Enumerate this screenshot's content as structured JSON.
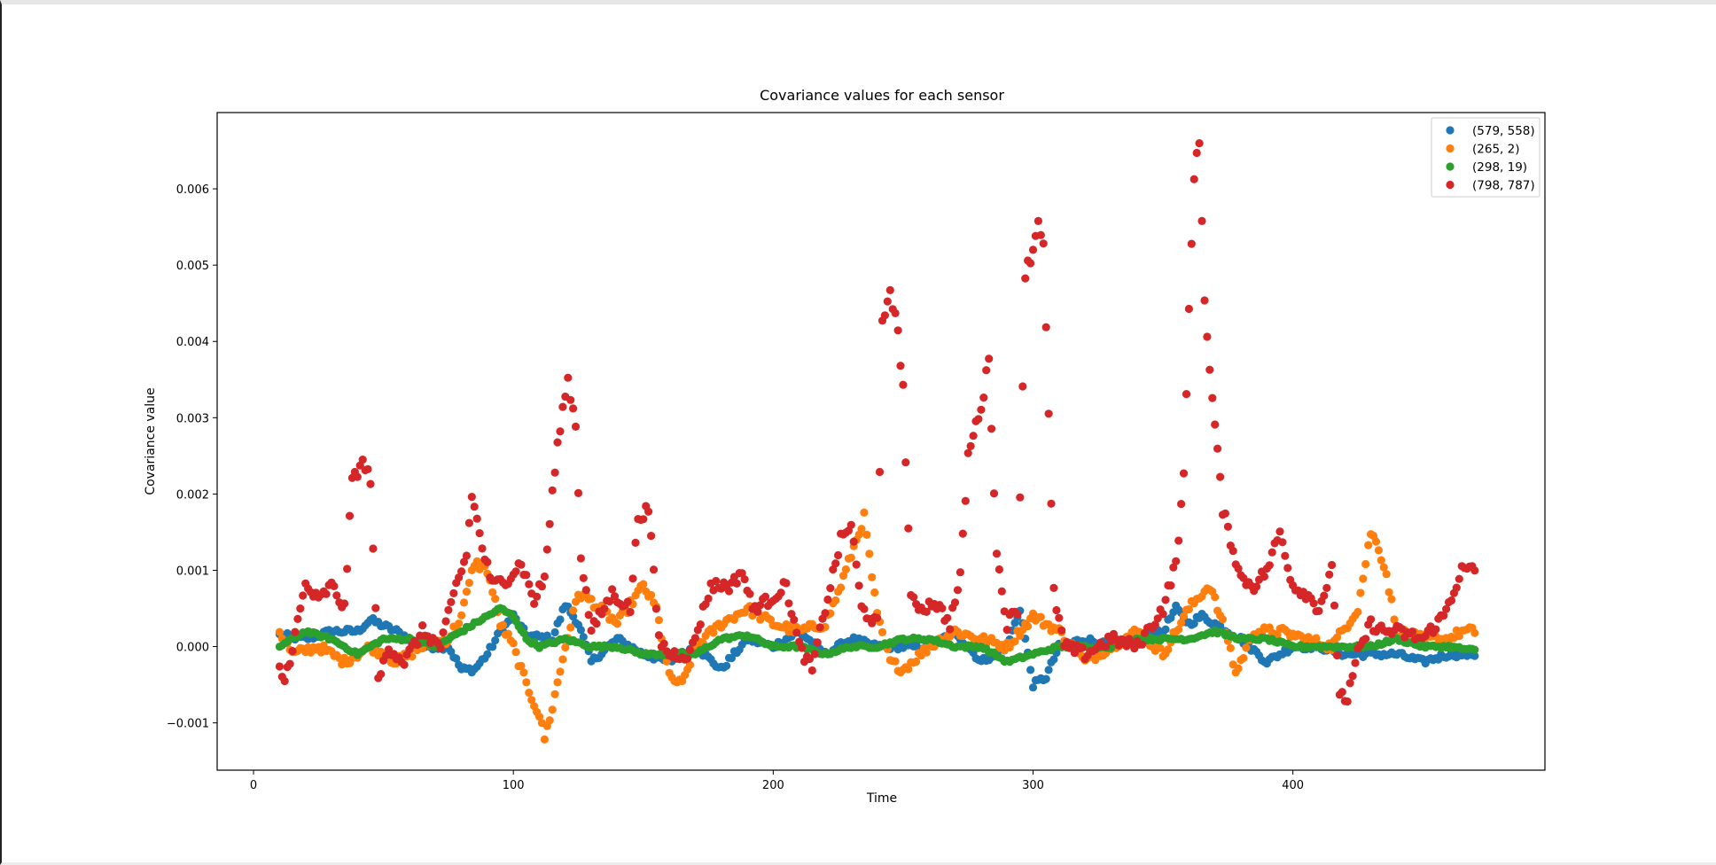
{
  "chart_data": {
    "type": "scatter",
    "title": "Covariance values for each sensor",
    "xlabel": "Time",
    "ylabel": "Covariance value",
    "xlim": [
      -14,
      497
    ],
    "ylim": [
      -0.00162,
      0.007
    ],
    "xticks": [
      0,
      100,
      200,
      300,
      400
    ],
    "yticks": [
      -0.001,
      0.0,
      0.001,
      0.002,
      0.003,
      0.004,
      0.005,
      0.006
    ],
    "ytick_labels": [
      "−0.001",
      "0.000",
      "0.001",
      "0.002",
      "0.003",
      "0.004",
      "0.005",
      "0.006"
    ],
    "legend_position": "top-right",
    "grid": false,
    "series": [
      {
        "name": "(579, 558)",
        "color": "#1f77b4",
        "keypoints": [
          [
            10,
            0.00015
          ],
          [
            20,
            0.0001
          ],
          [
            30,
            0.0002
          ],
          [
            40,
            0.0002
          ],
          [
            45,
            0.00035
          ],
          [
            55,
            0.0002
          ],
          [
            65,
            0.0
          ],
          [
            75,
            0.0
          ],
          [
            80,
            -0.0003
          ],
          [
            85,
            -0.0003
          ],
          [
            90,
            -0.0001
          ],
          [
            95,
            0.0002
          ],
          [
            100,
            0.0004
          ],
          [
            105,
            0.00015
          ],
          [
            115,
            0.0001
          ],
          [
            120,
            0.00055
          ],
          [
            125,
            0.0003
          ],
          [
            130,
            -0.0002
          ],
          [
            140,
            0.0001
          ],
          [
            150,
            -0.0001
          ],
          [
            160,
            -0.0002
          ],
          [
            170,
            0.0
          ],
          [
            180,
            -0.0003
          ],
          [
            190,
            0.0001
          ],
          [
            200,
            0.0
          ],
          [
            210,
            0.0002
          ],
          [
            220,
            -0.0001
          ],
          [
            230,
            0.0001
          ],
          [
            240,
            0.0
          ],
          [
            250,
            0.0
          ],
          [
            260,
            0.0
          ],
          [
            270,
            0.0002
          ],
          [
            280,
            -0.0002
          ],
          [
            290,
            0.0
          ],
          [
            295,
            0.0005
          ],
          [
            300,
            -0.0005
          ],
          [
            305,
            -0.0004
          ],
          [
            310,
            0.0
          ],
          [
            320,
            0.0001
          ],
          [
            330,
            0.0
          ],
          [
            340,
            0.0001
          ],
          [
            350,
            0.0002
          ],
          [
            355,
            0.0005
          ],
          [
            360,
            0.0003
          ],
          [
            365,
            0.0004
          ],
          [
            370,
            0.0003
          ],
          [
            380,
            0.0001
          ],
          [
            390,
            -0.0002
          ],
          [
            400,
            0.0
          ],
          [
            410,
            0.0
          ],
          [
            420,
            -0.0001
          ],
          [
            430,
            -0.0001
          ],
          [
            440,
            -0.0001
          ],
          [
            450,
            -0.0002
          ],
          [
            460,
            -0.0001
          ],
          [
            470,
            -0.0001
          ]
        ]
      },
      {
        "name": "(265, 2)",
        "color": "#ff7f0e",
        "keypoints": [
          [
            10,
            0.0002
          ],
          [
            15,
            -0.0001
          ],
          [
            25,
            0.0
          ],
          [
            35,
            -0.0002
          ],
          [
            45,
            0.0
          ],
          [
            55,
            -0.0002
          ],
          [
            65,
            0.0
          ],
          [
            75,
            0.0001
          ],
          [
            80,
            0.0004
          ],
          [
            85,
            0.0011
          ],
          [
            90,
            0.001
          ],
          [
            95,
            0.0003
          ],
          [
            100,
            0.0
          ],
          [
            105,
            -0.0005
          ],
          [
            110,
            -0.0009
          ],
          [
            112,
            -0.0012
          ],
          [
            115,
            -0.0008
          ],
          [
            120,
            0.0
          ],
          [
            125,
            0.0007
          ],
          [
            130,
            0.0006
          ],
          [
            140,
            0.0003
          ],
          [
            150,
            0.0008
          ],
          [
            155,
            0.0005
          ],
          [
            160,
            -0.0004
          ],
          [
            165,
            -0.0005
          ],
          [
            170,
            0.0
          ],
          [
            180,
            0.0003
          ],
          [
            190,
            0.0005
          ],
          [
            200,
            0.0003
          ],
          [
            210,
            0.0002
          ],
          [
            220,
            0.0003
          ],
          [
            225,
            0.0007
          ],
          [
            230,
            0.0012
          ],
          [
            235,
            0.0017
          ],
          [
            240,
            0.0004
          ],
          [
            245,
            -0.0002
          ],
          [
            250,
            -0.0003
          ],
          [
            260,
            0.0
          ],
          [
            270,
            0.0002
          ],
          [
            280,
            0.0001
          ],
          [
            290,
            0.0
          ],
          [
            300,
            0.0004
          ],
          [
            310,
            0.0002
          ],
          [
            320,
            -0.0002
          ],
          [
            330,
            0.0
          ],
          [
            340,
            0.0002
          ],
          [
            350,
            -0.0001
          ],
          [
            360,
            0.0005
          ],
          [
            365,
            0.0007
          ],
          [
            368,
            0.0008
          ],
          [
            375,
            0.0001
          ],
          [
            378,
            -0.00035
          ],
          [
            385,
            0.0002
          ],
          [
            395,
            0.0002
          ],
          [
            405,
            0.0001
          ],
          [
            415,
            0.0
          ],
          [
            425,
            0.0005
          ],
          [
            430,
            0.0015
          ],
          [
            433,
            0.0013
          ],
          [
            436,
            0.00095
          ],
          [
            440,
            0.0002
          ],
          [
            450,
            0.0001
          ],
          [
            460,
            0.0001
          ],
          [
            465,
            0.0002
          ],
          [
            470,
            0.0002
          ]
        ]
      },
      {
        "name": "(298, 19)",
        "color": "#2ca02c",
        "keypoints": [
          [
            10,
            0.0
          ],
          [
            20,
            0.0002
          ],
          [
            30,
            0.0001
          ],
          [
            40,
            -0.0001
          ],
          [
            50,
            0.0001
          ],
          [
            60,
            0.0001
          ],
          [
            70,
            0.0
          ],
          [
            80,
            0.0002
          ],
          [
            85,
            0.0003
          ],
          [
            90,
            0.0004
          ],
          [
            95,
            0.0005
          ],
          [
            100,
            0.0004
          ],
          [
            105,
            0.0001
          ],
          [
            110,
            0.0
          ],
          [
            120,
            0.0001
          ],
          [
            130,
            0.0
          ],
          [
            140,
            0.0
          ],
          [
            150,
            -0.0001
          ],
          [
            160,
            -0.0001
          ],
          [
            170,
            -0.0001
          ],
          [
            180,
            0.0001
          ],
          [
            190,
            0.00015
          ],
          [
            200,
            0.0
          ],
          [
            210,
            0.0
          ],
          [
            220,
            -0.0001
          ],
          [
            230,
            0.0
          ],
          [
            240,
            0.0
          ],
          [
            250,
            0.0001
          ],
          [
            260,
            0.0001
          ],
          [
            270,
            0.0
          ],
          [
            280,
            0.0
          ],
          [
            290,
            -0.0002
          ],
          [
            300,
            -0.0001
          ],
          [
            310,
            0.0
          ],
          [
            320,
            0.0
          ],
          [
            330,
            0.0
          ],
          [
            340,
            0.0001
          ],
          [
            350,
            0.0001
          ],
          [
            360,
            0.0001
          ],
          [
            370,
            0.0002
          ],
          [
            380,
            0.0001
          ],
          [
            390,
            0.0001
          ],
          [
            400,
            0.0
          ],
          [
            410,
            0.0
          ],
          [
            420,
            0.0
          ],
          [
            430,
            0.0
          ],
          [
            440,
            0.0001
          ],
          [
            450,
            0.0
          ],
          [
            460,
            0.0
          ],
          [
            470,
            -5e-05
          ]
        ]
      },
      {
        "name": "(798, 787)",
        "color": "#d62728",
        "keypoints": [
          [
            10,
            -0.0003
          ],
          [
            12,
            -0.00045
          ],
          [
            15,
            0.0
          ],
          [
            20,
            0.0008
          ],
          [
            25,
            0.0006
          ],
          [
            30,
            0.0008
          ],
          [
            35,
            0.0005
          ],
          [
            38,
            0.0022
          ],
          [
            42,
            0.0024
          ],
          [
            45,
            0.0022
          ],
          [
            48,
            -0.00045
          ],
          [
            52,
            0.0
          ],
          [
            58,
            -0.0002
          ],
          [
            65,
            0.0002
          ],
          [
            72,
            0.0
          ],
          [
            78,
            0.0008
          ],
          [
            82,
            0.0012
          ],
          [
            84,
            0.002
          ],
          [
            88,
            0.0013
          ],
          [
            92,
            0.0008
          ],
          [
            98,
            0.0009
          ],
          [
            103,
            0.0011
          ],
          [
            108,
            0.0006
          ],
          [
            112,
            0.0009
          ],
          [
            115,
            0.002
          ],
          [
            118,
            0.0029
          ],
          [
            121,
            0.0035
          ],
          [
            124,
            0.0029
          ],
          [
            126,
            0.0012
          ],
          [
            130,
            0.0002
          ],
          [
            138,
            0.0007
          ],
          [
            145,
            0.0005
          ],
          [
            148,
            0.0017
          ],
          [
            152,
            0.0018
          ],
          [
            156,
            0.0001
          ],
          [
            160,
            -0.0001
          ],
          [
            168,
            -0.0001
          ],
          [
            176,
            0.0008
          ],
          [
            184,
            0.0008
          ],
          [
            188,
            0.001
          ],
          [
            192,
            0.0005
          ],
          [
            198,
            0.0006
          ],
          [
            205,
            0.0008
          ],
          [
            210,
            0.0
          ],
          [
            215,
            -0.0003
          ],
          [
            220,
            0.0005
          ],
          [
            226,
            0.0014
          ],
          [
            230,
            0.0016
          ],
          [
            234,
            0.0005
          ],
          [
            240,
            0.0003
          ],
          [
            242,
            0.0042
          ],
          [
            245,
            0.0047
          ],
          [
            248,
            0.0041
          ],
          [
            250,
            0.0034
          ],
          [
            253,
            0.0006
          ],
          [
            258,
            0.0005
          ],
          [
            262,
            0.0006
          ],
          [
            268,
            0.0003
          ],
          [
            272,
            0.0009
          ],
          [
            275,
            0.0025
          ],
          [
            278,
            0.0029
          ],
          [
            281,
            0.0033
          ],
          [
            283,
            0.0038
          ],
          [
            286,
            0.0012
          ],
          [
            290,
            0.0003
          ],
          [
            294,
            0.0005
          ],
          [
            297,
            0.0049
          ],
          [
            300,
            0.0052
          ],
          [
            302,
            0.0056
          ],
          [
            304,
            0.0053
          ],
          [
            308,
            0.0007
          ],
          [
            312,
            0.0
          ],
          [
            320,
            -0.0001
          ],
          [
            330,
            0.0001
          ],
          [
            340,
            0.0
          ],
          [
            350,
            0.0005
          ],
          [
            355,
            0.0011
          ],
          [
            358,
            0.0022
          ],
          [
            360,
            0.0044
          ],
          [
            362,
            0.0062
          ],
          [
            364,
            0.0066
          ],
          [
            366,
            0.0046
          ],
          [
            368,
            0.0036
          ],
          [
            370,
            0.0029
          ],
          [
            373,
            0.0018
          ],
          [
            376,
            0.0014
          ],
          [
            380,
            0.0009
          ],
          [
            385,
            0.0008
          ],
          [
            390,
            0.001
          ],
          [
            395,
            0.0015
          ],
          [
            400,
            0.0008
          ],
          [
            405,
            0.0007
          ],
          [
            410,
            0.0005
          ],
          [
            415,
            0.001
          ],
          [
            418,
            -0.0006
          ],
          [
            421,
            -0.0007
          ],
          [
            425,
            -0.0001
          ],
          [
            430,
            0.0003
          ],
          [
            435,
            0.0002
          ],
          [
            440,
            0.0002
          ],
          [
            450,
            0.0001
          ],
          [
            458,
            0.0004
          ],
          [
            465,
            0.001
          ],
          [
            470,
            0.001
          ]
        ]
      }
    ]
  }
}
